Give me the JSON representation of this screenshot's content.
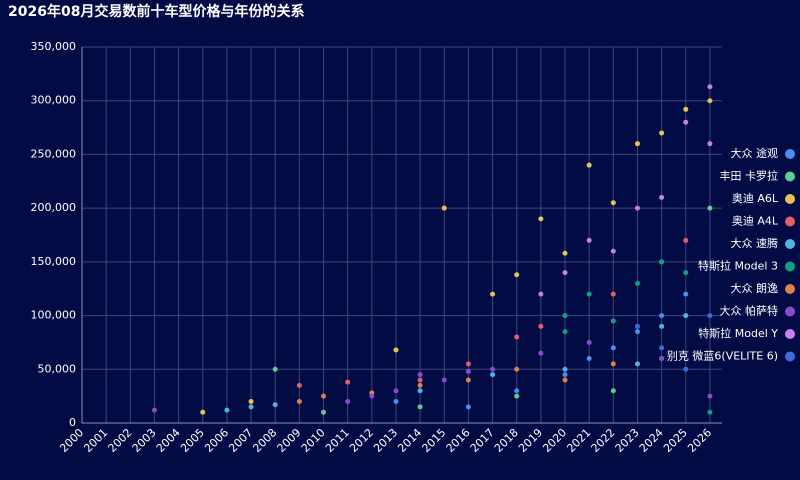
{
  "chart_data": {
    "type": "scatter",
    "title": "2026年08月交易数前十车型价格与年份的关系",
    "xlim": [
      2000,
      2026.5
    ],
    "xticks": [
      2000,
      2001,
      2002,
      2003,
      2004,
      2005,
      2006,
      2007,
      2008,
      2009,
      2010,
      2011,
      2012,
      2013,
      2014,
      2015,
      2016,
      2017,
      2018,
      2019,
      2020,
      2021,
      2022,
      2023,
      2024,
      2025,
      2026
    ],
    "ylim": [
      0,
      350000
    ],
    "yticks": [
      0,
      {
        "value": 50000,
        "label": "50,000"
      },
      {
        "value": 100000,
        "label": "100,000"
      },
      {
        "value": 150000,
        "label": "150,000"
      },
      {
        "value": 200000,
        "label": "200,000"
      },
      {
        "value": 250000,
        "label": "250,000"
      },
      {
        "value": 300000,
        "label": "300,000"
      },
      {
        "value": 350000,
        "label": "350,000"
      }
    ],
    "grid": true,
    "legend": "right",
    "series": [
      {
        "name": "大众 途观",
        "color": "#4a8ff0",
        "x": [
          2013,
          2016,
          2018,
          2020,
          2021,
          2022,
          2023,
          2024,
          2025
        ],
        "values": [
          20000,
          15000,
          30000,
          45000,
          60000,
          70000,
          85000,
          100000,
          120000
        ]
      },
      {
        "name": "丰田 卡罗拉",
        "color": "#5ad08f",
        "x": [
          2008,
          2010,
          2014,
          2018,
          2022,
          2024,
          2026
        ],
        "values": [
          50000,
          10000,
          15000,
          25000,
          30000,
          60000,
          200000
        ]
      },
      {
        "name": "奥迪 A6L",
        "color": "#e8c14f",
        "x": [
          2005,
          2007,
          2013,
          2015,
          2017,
          2018,
          2019,
          2020,
          2021,
          2022,
          2023,
          2024,
          2025,
          2026
        ],
        "values": [
          10000,
          20000,
          68000,
          200000,
          120000,
          138000,
          190000,
          158000,
          240000,
          205000,
          260000,
          270000,
          292000,
          300000
        ]
      },
      {
        "name": "奥迪 A4L",
        "color": "#e0606a",
        "x": [
          2009,
          2011,
          2014,
          2016,
          2018,
          2019,
          2020,
          2022,
          2024,
          2025
        ],
        "values": [
          35000,
          38000,
          40000,
          55000,
          80000,
          90000,
          100000,
          120000,
          150000,
          170000
        ]
      },
      {
        "name": "大众 速腾",
        "color": "#4fb4e0",
        "x": [
          2006,
          2007,
          2008,
          2014,
          2017,
          2020,
          2023,
          2024,
          2025
        ],
        "values": [
          12000,
          15000,
          17000,
          30000,
          45000,
          50000,
          55000,
          90000,
          100000
        ]
      },
      {
        "name": "特斯拉 Model 3",
        "color": "#13a07a",
        "x": [
          2020,
          2020,
          2021,
          2022,
          2023,
          2024,
          2025,
          2026
        ],
        "values": [
          85000,
          100000,
          120000,
          95000,
          130000,
          150000,
          140000,
          10000
        ]
      },
      {
        "name": "大众 朗逸",
        "color": "#e0804a",
        "x": [
          2009,
          2010,
          2012,
          2014,
          2016,
          2018,
          2020,
          2022
        ],
        "values": [
          20000,
          25000,
          28000,
          35000,
          40000,
          50000,
          40000,
          55000
        ]
      },
      {
        "name": "大众 帕萨特",
        "color": "#8a4ad0",
        "x": [
          2003,
          2011,
          2012,
          2013,
          2014,
          2015,
          2016,
          2017,
          2019,
          2021,
          2024,
          2026
        ],
        "values": [
          12000,
          20000,
          25000,
          30000,
          45000,
          40000,
          48000,
          50000,
          65000,
          75000,
          60000,
          25000
        ]
      },
      {
        "name": "特斯拉 Model Y",
        "color": "#c77ef0",
        "x": [
          2019,
          2020,
          2021,
          2022,
          2023,
          2024,
          2025,
          2026,
          2026
        ],
        "values": [
          120000,
          140000,
          170000,
          160000,
          200000,
          210000,
          280000,
          313000,
          260000
        ]
      },
      {
        "name": "别克 微蓝6(VELITE 6)",
        "color": "#3a6fd8",
        "x": [
          2023,
          2024,
          2025,
          2026
        ],
        "values": [
          90000,
          70000,
          50000,
          100000
        ]
      }
    ]
  }
}
